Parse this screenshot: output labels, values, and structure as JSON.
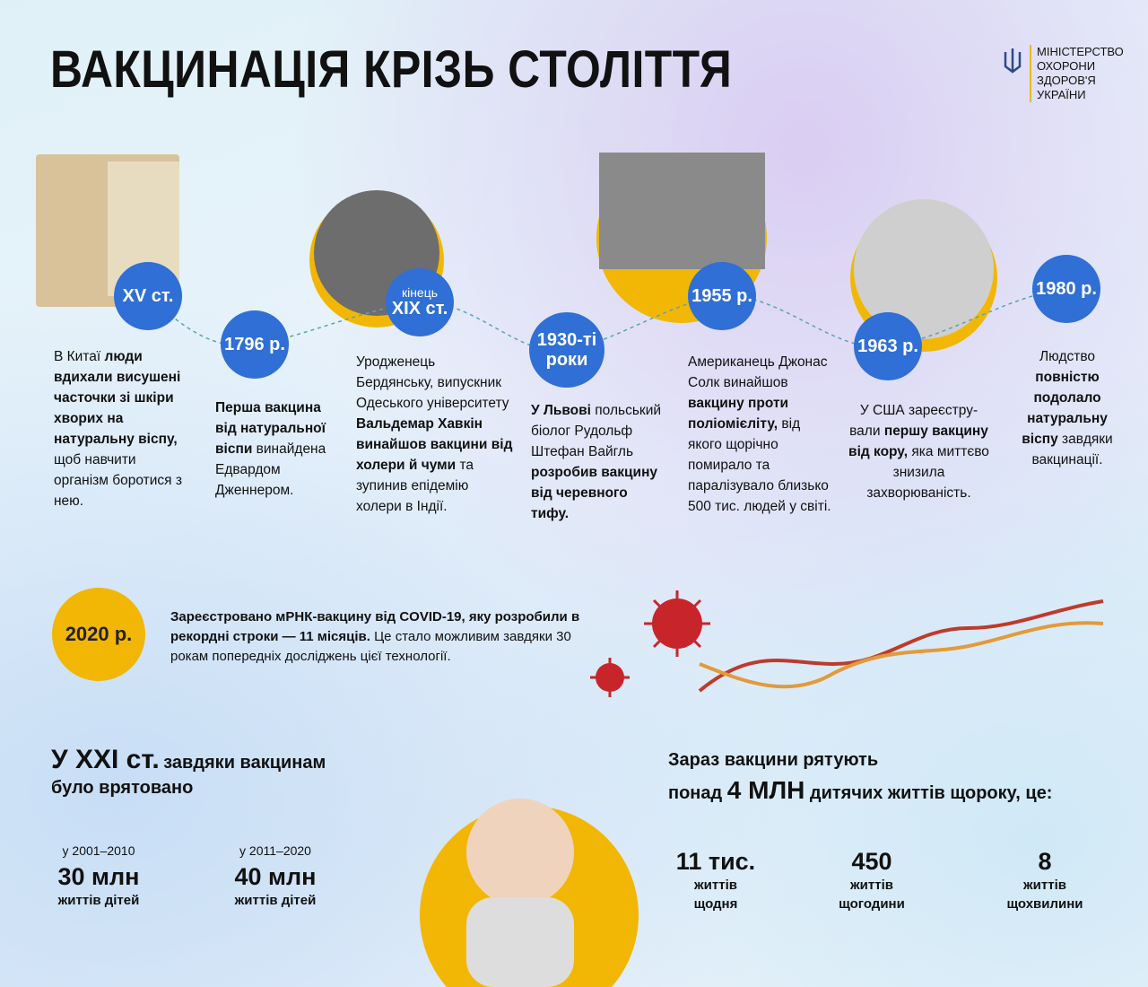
{
  "header": {
    "title": "ВАКЦИНАЦІЯ КРІЗЬ СТОЛІТТЯ",
    "logo_lines": [
      "МІНІСТЕРСТВО",
      "ОХОРОНИ",
      "ЗДОРОВ'Я",
      "УКРАЇНИ"
    ]
  },
  "timeline": [
    {
      "label": [
        "XV ст."
      ],
      "text": [
        {
          "text": "В Китаї ",
          "bold": false
        },
        {
          "text": "люди вдихали висушені часточки зі шкіри хворих на натуральну віспу,",
          "bold": true
        },
        {
          "text": " щоб навчити організм боротися з нею.",
          "bold": false
        }
      ]
    },
    {
      "label": [
        "1796 р."
      ],
      "text": [
        {
          "text": "Перша вакцина від натуральної віспи",
          "bold": true
        },
        {
          "text": " винайдена Едвардом Дженнером.",
          "bold": false
        }
      ]
    },
    {
      "label": [
        "кінець",
        "XIX ст."
      ],
      "text": [
        {
          "text": "Уродженець Бердянську, випускник Одеського університету ",
          "bold": false
        },
        {
          "text": "Вальдемар Хавкін винайшов вакцини від холери й чуми",
          "bold": true
        },
        {
          "text": " та зупинив епідемію холери в Індії.",
          "bold": false
        }
      ]
    },
    {
      "label": [
        "1930-ті",
        "роки"
      ],
      "text": [
        {
          "text": "У Львові",
          "bold": true
        },
        {
          "text": " польський біолог Рудольф Штефан Вайгль ",
          "bold": false
        },
        {
          "text": "розробив вакцину від черевного тифу.",
          "bold": true
        }
      ]
    },
    {
      "label": [
        "1955 р."
      ],
      "text": [
        {
          "text": "Американець Джонас Солк винайшов ",
          "bold": false
        },
        {
          "text": "вакцину проти поліомієліту,",
          "bold": true
        },
        {
          "text": " від якого щорічно помирало та паралізувало близько 500 тис. людей у світі.",
          "bold": false
        }
      ]
    },
    {
      "label": [
        "1963 р."
      ],
      "text": [
        {
          "text": "У США зареєстру-вали ",
          "bold": false
        },
        {
          "text": "першу вакцину від кору,",
          "bold": true
        },
        {
          "text": " яка миттєво знизила захворюваність.",
          "bold": false
        }
      ]
    },
    {
      "label": [
        "1980 р."
      ],
      "text": [
        {
          "text": "Людство ",
          "bold": false
        },
        {
          "text": "повністю подолало натуральну віспу",
          "bold": true
        },
        {
          "text": " завдяки вакцинації.",
          "bold": false
        }
      ]
    }
  ],
  "milestone_2020": {
    "label": "2020 р.",
    "text": [
      {
        "text": "Зареєстровано мРНК-вакцину від COVID-19, яку розробили в рекордні строки — 11 місяців.",
        "bold": true
      },
      {
        "text": " Це стало можливим завдяки 30 рокам попередніх досліджень цієї технології.",
        "bold": false
      }
    ]
  },
  "summary_21c": {
    "heading": "У XXI ст.",
    "subheading": "завдяки вакцинам було врятовано",
    "stats": [
      {
        "period": "у 2001–2010",
        "value": "30 млн",
        "unit": "життів дітей"
      },
      {
        "period": "у 2011–2020",
        "value": "40 млн",
        "unit": "життів дітей"
      }
    ]
  },
  "current": {
    "line1": "Зараз вакцини рятують",
    "line2_pre": "понад",
    "line2_big": "4 МЛН",
    "line2_post": "дитячих життів щороку, це:",
    "stats": [
      {
        "value": "11 тис.",
        "lines": [
          "життів",
          "щодня"
        ]
      },
      {
        "value": "450",
        "lines": [
          "життів",
          "щогодини"
        ]
      },
      {
        "value": "8",
        "lines": [
          "життів",
          "щохвилини"
        ]
      }
    ]
  }
}
